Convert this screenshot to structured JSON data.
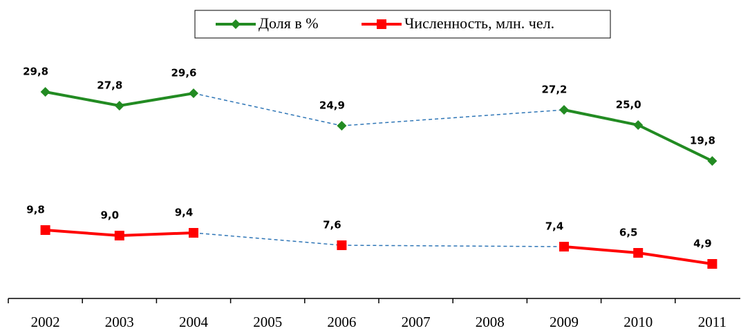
{
  "chart_data": {
    "type": "line",
    "categories": [
      "2002",
      "2003",
      "2004",
      "2005",
      "2006",
      "2007",
      "2008",
      "2009",
      "2010",
      "2011"
    ],
    "series": [
      {
        "name": "Доля в %",
        "color": "#228b22",
        "marker": "diamond",
        "values": [
          29.8,
          27.8,
          29.6,
          null,
          24.9,
          null,
          null,
          27.2,
          25.0,
          19.8
        ],
        "value_labels": [
          "29,8",
          "27,8",
          "29,6",
          null,
          "24,9",
          null,
          null,
          "27,2",
          "25,0",
          "19,8"
        ]
      },
      {
        "name": "Численность, млн. чел.",
        "color": "#ff0000",
        "marker": "square",
        "values": [
          9.8,
          9.0,
          9.4,
          null,
          7.6,
          null,
          null,
          7.4,
          6.5,
          4.9
        ],
        "value_labels": [
          "9,8",
          "9,0",
          "9,4",
          null,
          "7,6",
          null,
          null,
          "7,4",
          "6,5",
          "4,9"
        ]
      }
    ],
    "ylim": [
      0,
      40
    ],
    "legend": "top",
    "gap_connector": "dashed"
  }
}
